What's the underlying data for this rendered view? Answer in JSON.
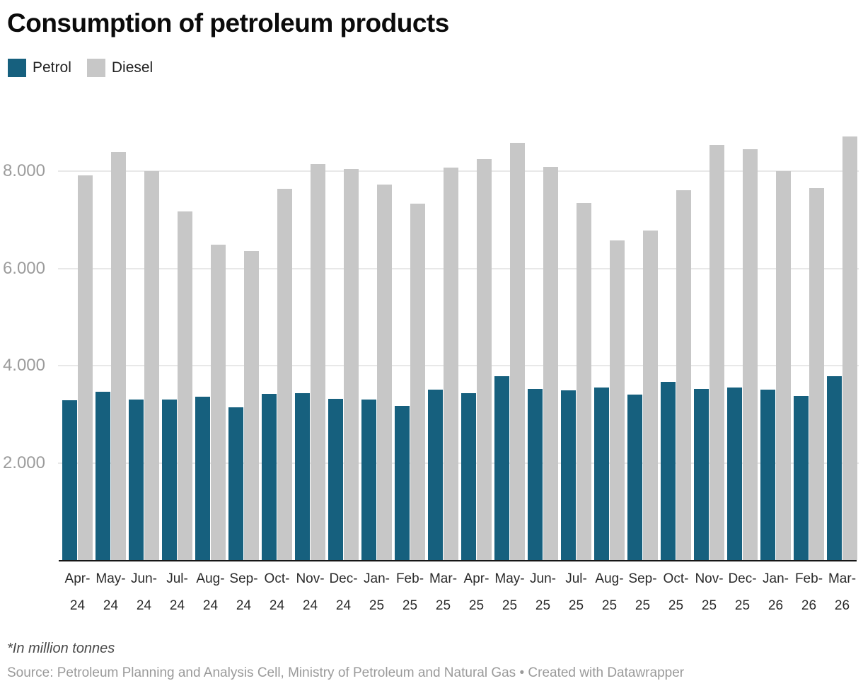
{
  "title": "Consumption of petroleum products",
  "legend": [
    {
      "label": "Petrol",
      "color": "#16607E"
    },
    {
      "label": "Diesel",
      "color": "#C7C7C7"
    }
  ],
  "chart_data": {
    "type": "bar",
    "title": "Consumption of petroleum products",
    "categories": [
      "Apr-24",
      "May-24",
      "Jun-24",
      "Jul-24",
      "Aug-24",
      "Sep-24",
      "Oct-24",
      "Nov-24",
      "Dec-24",
      "Jan-25",
      "Feb-25",
      "Mar-25",
      "Apr-25",
      "May-25",
      "Jun-25",
      "Jul-25",
      "Aug-25",
      "Sep-25",
      "Oct-25",
      "Nov-25",
      "Dec-25",
      "Jan-26",
      "Feb-26",
      "Mar-26"
    ],
    "series": [
      {
        "name": "Petrol",
        "values": [
          3290,
          3460,
          3300,
          3310,
          3360,
          3140,
          3420,
          3430,
          3320,
          3300,
          3170,
          3510,
          3440,
          3780,
          3520,
          3490,
          3550,
          3410,
          3670,
          3520,
          3550,
          3500,
          3380,
          3780
        ]
      },
      {
        "name": "Diesel",
        "values": [
          7910,
          8400,
          8000,
          7170,
          6490,
          6360,
          7640,
          8150,
          8050,
          7730,
          7330,
          8070,
          8250,
          8580,
          8090,
          7350,
          6570,
          6780,
          7610,
          8540,
          8450,
          8000,
          7650,
          8710
        ]
      }
    ],
    "xlabel": "",
    "ylabel": "",
    "ylim": [
      0,
      8830
    ],
    "yticks": [
      2000,
      4000,
      6000,
      8000
    ],
    "ytick_labels": [
      "2.000",
      "4.000",
      "6.000",
      "8.000"
    ],
    "grid": "horizontal",
    "legend_position": "top-left"
  },
  "footer": {
    "note": "*In million tonnes",
    "source": "Source: Petroleum Planning and Analysis Cell, Ministry of Petroleum and Natural Gas • Created with Datawrapper"
  },
  "colors": {
    "petrol": "#16607E",
    "diesel": "#C7C7C7",
    "grid": "#E8E8E8",
    "axis": "#161616",
    "ytick_text": "#9C9C9C",
    "xtick_text": "#2A2A2A",
    "title_text": "#0B0B0B",
    "note_text": "#4A4A4A",
    "source_text": "#9A9A9A",
    "background": "#FFFFFF"
  }
}
